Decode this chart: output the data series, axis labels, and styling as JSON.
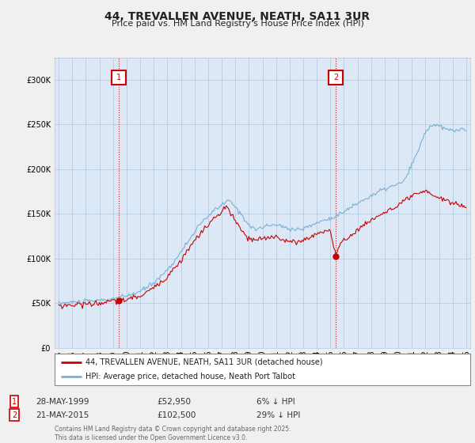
{
  "title": "44, TREVALLEN AVENUE, NEATH, SA11 3UR",
  "subtitle": "Price paid vs. HM Land Registry's House Price Index (HPI)",
  "legend_line1": "44, TREVALLEN AVENUE, NEATH, SA11 3UR (detached house)",
  "legend_line2": "HPI: Average price, detached house, Neath Port Talbot",
  "footnote": "Contains HM Land Registry data © Crown copyright and database right 2025.\nThis data is licensed under the Open Government Licence v3.0.",
  "transaction1_date": "28-MAY-1999",
  "transaction1_price": "£52,950",
  "transaction1_hpi": "6% ↓ HPI",
  "transaction2_date": "21-MAY-2015",
  "transaction2_price": "£102,500",
  "transaction2_hpi": "29% ↓ HPI",
  "line_color_red": "#cc0000",
  "line_color_blue": "#7aafd4",
  "marker1_x": 1999.4,
  "marker2_x": 2015.4,
  "marker1_y": 52950,
  "marker2_y": 102500,
  "ylim": [
    0,
    325000
  ],
  "yticks": [
    0,
    50000,
    100000,
    150000,
    200000,
    250000,
    300000
  ],
  "xlim_left": 1994.7,
  "xlim_right": 2025.3,
  "background_color": "#f0f0f0",
  "plot_bg_color": "#dce8f5",
  "grid_color": "#b0c8e0"
}
